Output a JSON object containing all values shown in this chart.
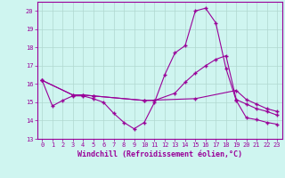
{
  "xlabel": "Windchill (Refroidissement éolien,°C)",
  "background_color": "#cff5f0",
  "grid_color": "#b0d8d0",
  "line_color": "#990099",
  "xlim": [
    -0.5,
    23.5
  ],
  "ylim": [
    13,
    20.5
  ],
  "yticks": [
    13,
    14,
    15,
    16,
    17,
    18,
    19,
    20
  ],
  "xticks": [
    0,
    1,
    2,
    3,
    4,
    5,
    6,
    7,
    8,
    9,
    10,
    11,
    12,
    13,
    14,
    15,
    16,
    17,
    18,
    19,
    20,
    21,
    22,
    23
  ],
  "line1_x": [
    0,
    1,
    2,
    3,
    4,
    5,
    6,
    7,
    8,
    9,
    10,
    11,
    12,
    13,
    14,
    15,
    16,
    17,
    18,
    19,
    20,
    21,
    22,
    23
  ],
  "line1_y": [
    16.2,
    14.8,
    15.1,
    15.35,
    15.35,
    15.2,
    15.0,
    14.4,
    13.9,
    13.55,
    13.9,
    15.0,
    16.5,
    17.7,
    18.1,
    20.0,
    20.15,
    19.35,
    16.85,
    15.1,
    14.15,
    14.05,
    13.9,
    13.8
  ],
  "line2_x": [
    0,
    3,
    4,
    5,
    10,
    15,
    19,
    20,
    21,
    22,
    23
  ],
  "line2_y": [
    16.2,
    15.4,
    15.4,
    15.35,
    15.1,
    15.2,
    15.65,
    15.15,
    14.9,
    14.65,
    14.5
  ],
  "line3_x": [
    0,
    3,
    4,
    5,
    10,
    11,
    13,
    14,
    15,
    16,
    17,
    18,
    19,
    20,
    21,
    22,
    23
  ],
  "line3_y": [
    16.2,
    15.4,
    15.4,
    15.35,
    15.1,
    15.1,
    15.5,
    16.1,
    16.6,
    17.0,
    17.35,
    17.55,
    15.15,
    14.9,
    14.65,
    14.5,
    14.3
  ],
  "marker_size": 2.0,
  "line_width": 0.8,
  "tick_fontsize": 5.0,
  "xlabel_fontsize": 6.0
}
